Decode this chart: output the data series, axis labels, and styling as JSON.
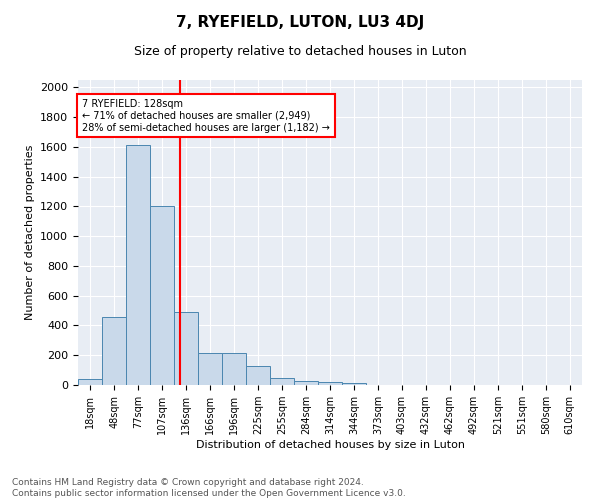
{
  "title": "7, RYEFIELD, LUTON, LU3 4DJ",
  "subtitle": "Size of property relative to detached houses in Luton",
  "xlabel": "Distribution of detached houses by size in Luton",
  "ylabel": "Number of detached properties",
  "footer_line1": "Contains HM Land Registry data © Crown copyright and database right 2024.",
  "footer_line2": "Contains public sector information licensed under the Open Government Licence v3.0.",
  "annotation_line1": "7 RYEFIELD: 128sqm",
  "annotation_line2": "← 71% of detached houses are smaller (2,949)",
  "annotation_line3": "28% of semi-detached houses are larger (1,182) →",
  "bar_color": "#c9d9ea",
  "bar_edge_color": "#4a86b0",
  "background_color": "#e8edf4",
  "vline_x": 128,
  "vline_color": "red",
  "categories": [
    "18sqm",
    "48sqm",
    "77sqm",
    "107sqm",
    "136sqm",
    "166sqm",
    "196sqm",
    "225sqm",
    "255sqm",
    "284sqm",
    "314sqm",
    "344sqm",
    "373sqm",
    "403sqm",
    "432sqm",
    "462sqm",
    "492sqm",
    "521sqm",
    "551sqm",
    "580sqm",
    "610sqm"
  ],
  "bin_edges": [
    3,
    33,
    62,
    92,
    121,
    151,
    180,
    210,
    239,
    269,
    298,
    328,
    357,
    387,
    416,
    446,
    475,
    505,
    534,
    564,
    593,
    623
  ],
  "values": [
    40,
    460,
    1610,
    1200,
    490,
    215,
    215,
    130,
    50,
    30,
    20,
    15,
    0,
    0,
    0,
    0,
    0,
    0,
    0,
    0,
    0
  ],
  "ylim": [
    0,
    2050
  ],
  "yticks": [
    0,
    200,
    400,
    600,
    800,
    1000,
    1200,
    1400,
    1600,
    1800,
    2000
  ]
}
